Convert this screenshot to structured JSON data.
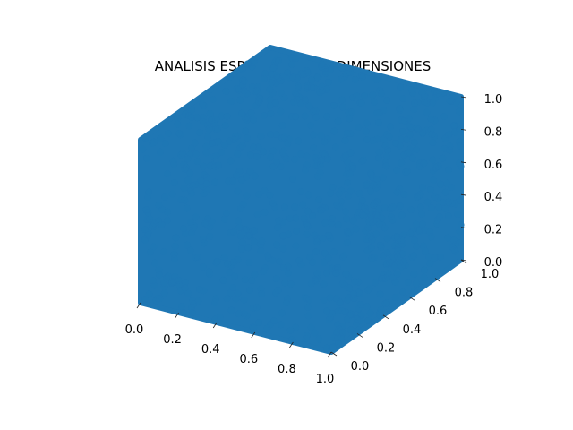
{
  "chart_data": {
    "type": "scatter",
    "projection": "3d",
    "title": "ANALISIS ESPECTRAL EN 3 DIMENSIONES",
    "xlabel": "",
    "ylabel": "",
    "zlabel": "",
    "xlim": [
      0.0,
      1.0
    ],
    "ylim": [
      0.0,
      1.0
    ],
    "zlim": [
      0.0,
      1.0
    ],
    "x_ticks": [
      "0.0",
      "0.2",
      "0.4",
      "0.6",
      "0.8",
      "1.0"
    ],
    "y_ticks": [
      "0.0",
      "0.2",
      "0.4",
      "0.6",
      "0.8",
      "1.0"
    ],
    "z_ticks": [
      "0.0",
      "0.2",
      "0.4",
      "0.6",
      "0.8",
      "1.0"
    ],
    "grid": true,
    "series": [
      {
        "color": "#1f77b4",
        "distribution": "uniform random points filling the unit cube",
        "x_range": [
          0.0,
          1.0
        ],
        "y_range": [
          0.0,
          1.0
        ],
        "z_range": [
          0.0,
          1.0
        ]
      }
    ]
  },
  "colors": {
    "marker": "#1f77b4",
    "pane_left": "#f2f2f2",
    "pane_back": "#ebebeb",
    "pane_floor": "#f7f7f7",
    "grid": "#d9d9d9"
  }
}
